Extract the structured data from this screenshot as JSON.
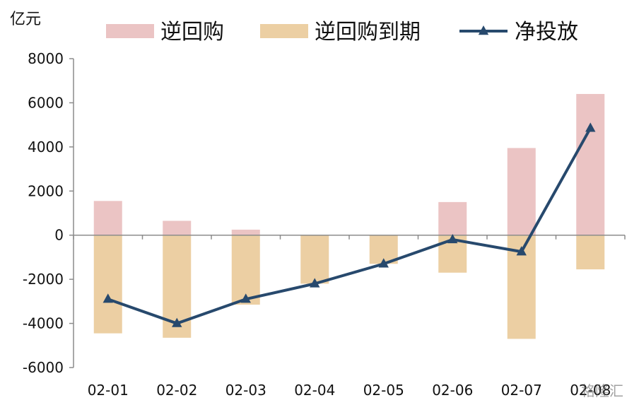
{
  "chart_data": {
    "type": "bar",
    "unit_label": "亿元",
    "categories": [
      "02-01",
      "02-02",
      "02-03",
      "02-04",
      "02-05",
      "02-06",
      "02-07",
      "02-08"
    ],
    "ylim": [
      -6000,
      8000
    ],
    "yticks": [
      "8000",
      "6000",
      "4000",
      "2000",
      "0",
      "-2000",
      "-4000",
      "-6000"
    ],
    "grid": false,
    "legend_position": "top",
    "series": [
      {
        "name": "逆回购",
        "kind": "bar",
        "color": "#ebc4c4",
        "values": [
          1550,
          650,
          250,
          0,
          0,
          1500,
          3950,
          6400
        ]
      },
      {
        "name": "逆回购到期",
        "kind": "bar",
        "color": "#eccfa3",
        "values": [
          -4450,
          -4650,
          -3150,
          -2200,
          -1300,
          -1700,
          -4700,
          -1550
        ]
      },
      {
        "name": "净投放",
        "kind": "line",
        "color": "#27496d",
        "values": [
          -2900,
          -4000,
          -2900,
          -2200,
          -1300,
          -200,
          -750,
          4850
        ]
      }
    ]
  },
  "watermark": "格隆汇"
}
